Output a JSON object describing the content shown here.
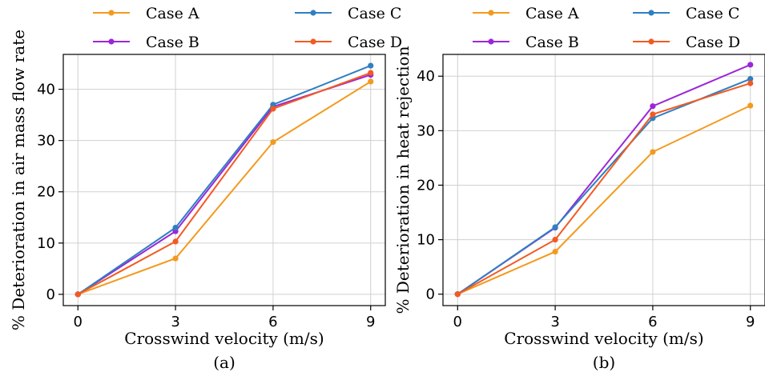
{
  "chart_data": [
    {
      "type": "line",
      "panel_label": "(a)",
      "xlabel": "Crosswind velocity (m/s)",
      "ylabel": "% Deterioration in air mass flow rate",
      "x": [
        0,
        3,
        6,
        9
      ],
      "xticks": [
        0,
        3,
        6,
        9
      ],
      "yticks": [
        0,
        10,
        20,
        30,
        40
      ],
      "xlim": [
        -0.45,
        9.45
      ],
      "ylim": [
        -2.2,
        46.8
      ],
      "grid": true,
      "legend_placement": "top-outside",
      "series": [
        {
          "name": "Case A",
          "color": "#f39a1e",
          "values": [
            0,
            7.0,
            29.7,
            41.5
          ]
        },
        {
          "name": "Case B",
          "color": "#9b26d9",
          "values": [
            0,
            12.3,
            36.6,
            42.8
          ]
        },
        {
          "name": "Case C",
          "color": "#2f7fc1",
          "values": [
            0,
            13.0,
            37.0,
            44.6
          ]
        },
        {
          "name": "Case D",
          "color": "#f25a22",
          "values": [
            0,
            10.3,
            36.2,
            43.2
          ]
        }
      ]
    },
    {
      "type": "line",
      "panel_label": "(b)",
      "xlabel": "Crosswind velocity (m/s)",
      "ylabel": "% Deterioration in heat rejection",
      "x": [
        0,
        3,
        6,
        9
      ],
      "xticks": [
        0,
        3,
        6,
        9
      ],
      "yticks": [
        0,
        10,
        20,
        30,
        40
      ],
      "xlim": [
        -0.45,
        9.45
      ],
      "ylim": [
        -2.1,
        44.0
      ],
      "grid": true,
      "legend_placement": "top-outside",
      "series": [
        {
          "name": "Case A",
          "color": "#f39a1e",
          "values": [
            0,
            7.8,
            26.1,
            34.6
          ]
        },
        {
          "name": "Case B",
          "color": "#9b26d9",
          "values": [
            0,
            12.2,
            34.5,
            42.1
          ]
        },
        {
          "name": "Case C",
          "color": "#2f7fc1",
          "values": [
            0,
            12.3,
            32.3,
            39.5
          ]
        },
        {
          "name": "Case D",
          "color": "#f25a22",
          "values": [
            0,
            10.0,
            33.0,
            38.7
          ]
        }
      ]
    }
  ]
}
